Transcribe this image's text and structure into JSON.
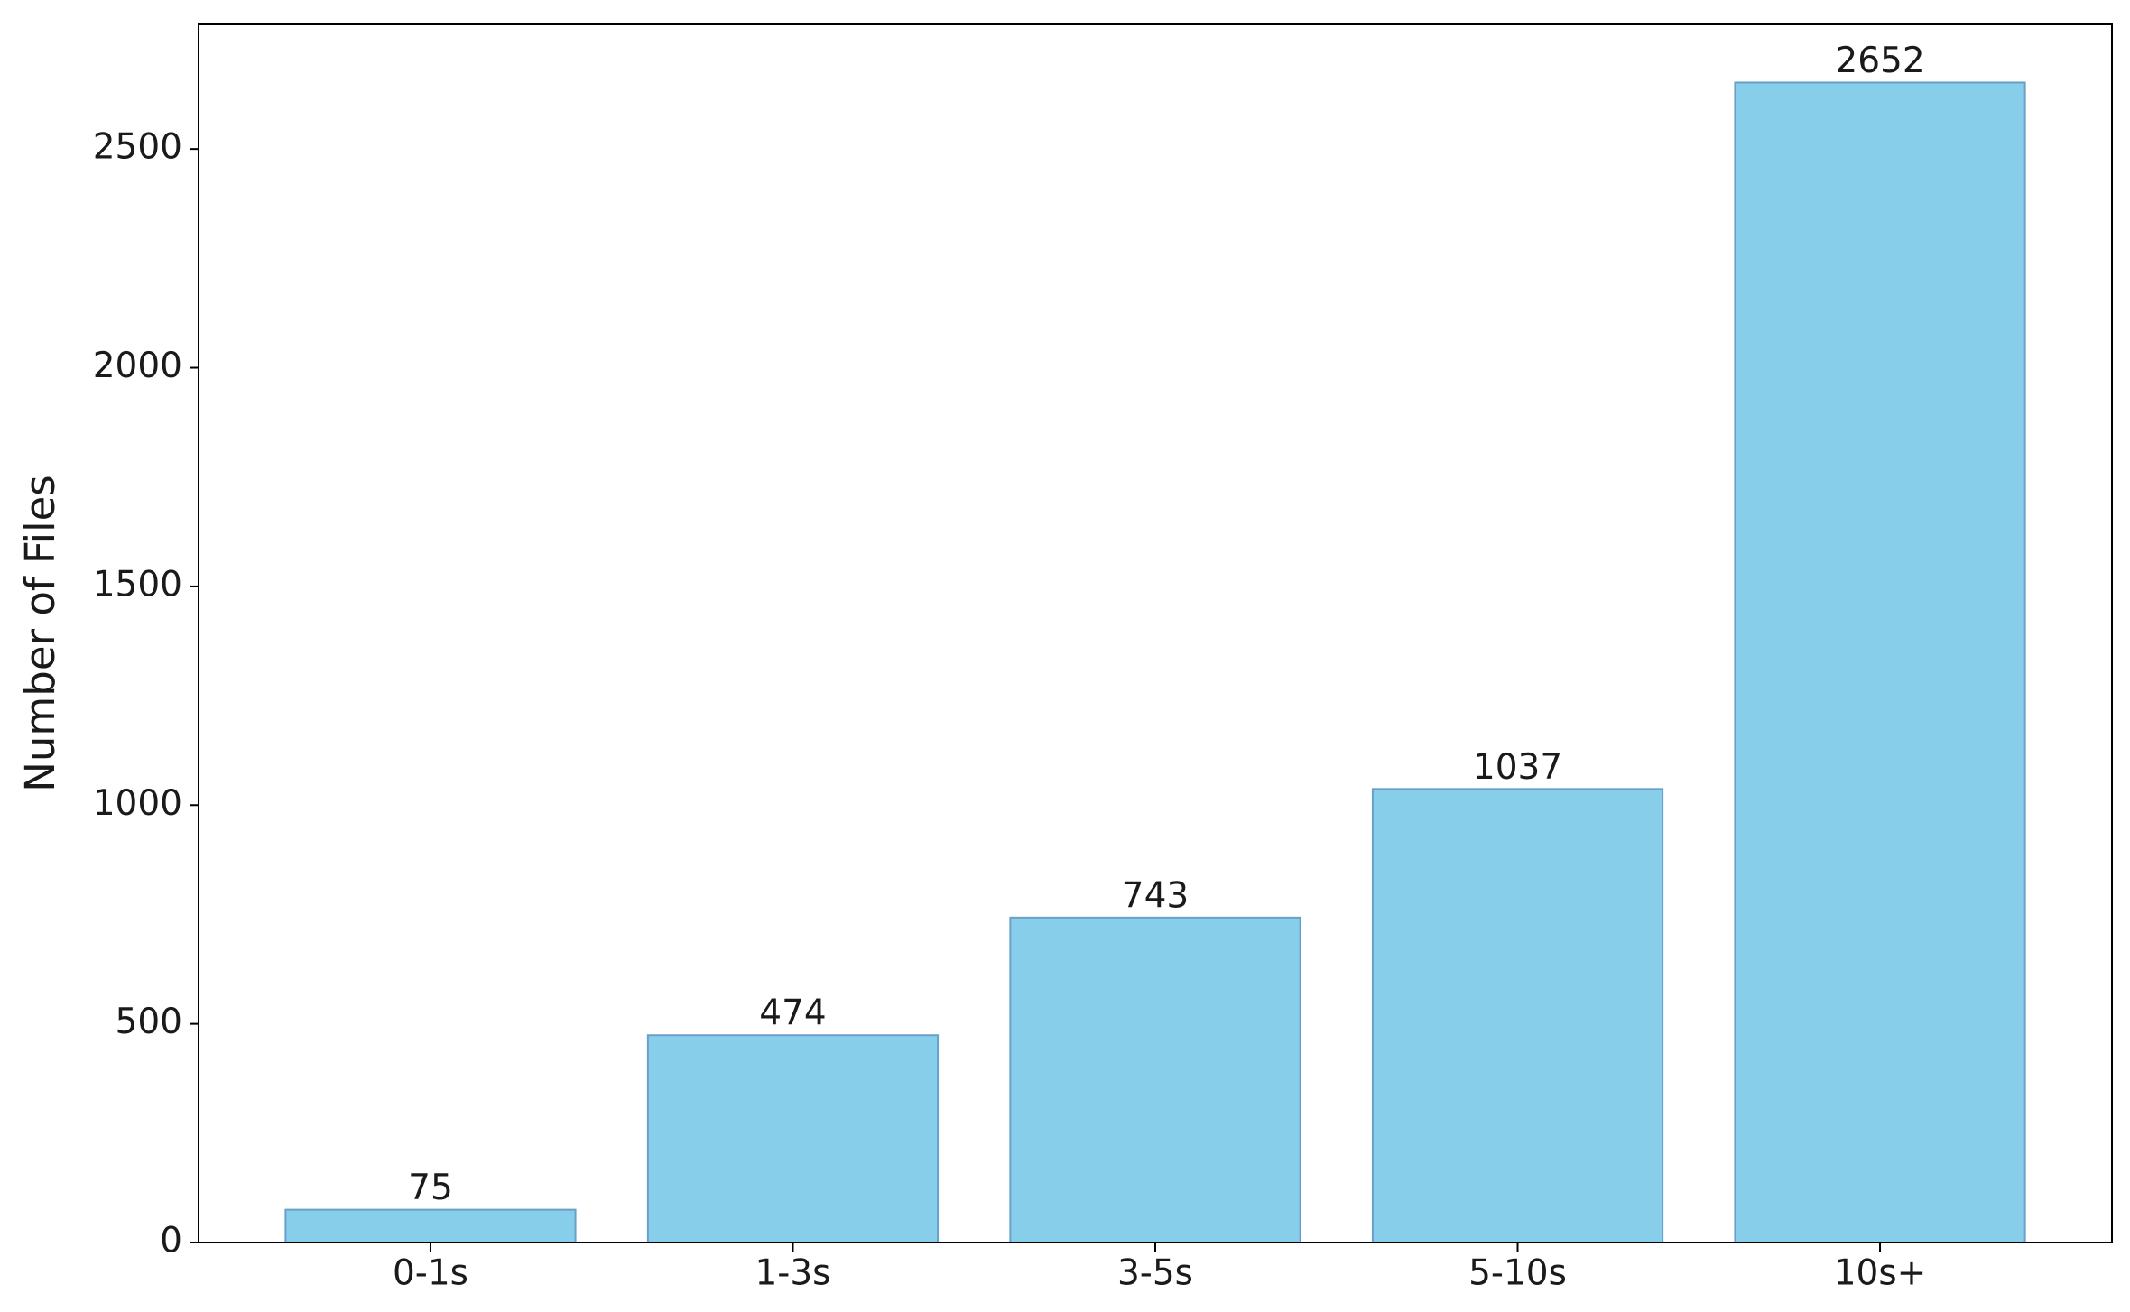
{
  "chart_data": {
    "type": "bar",
    "y_label": "Number of Files",
    "categories": [
      "0-1s",
      "1-3s",
      "3-5s",
      "5-10s",
      "10s+"
    ],
    "values": [
      75,
      474,
      743,
      1037,
      2652
    ],
    "color": "#87ceeb",
    "edge_color": "#6a9fc9",
    "ylim": [
      0,
      2785
    ],
    "yticks": [
      0,
      500,
      1000,
      1500,
      2000,
      2500
    ],
    "grid": false
  }
}
